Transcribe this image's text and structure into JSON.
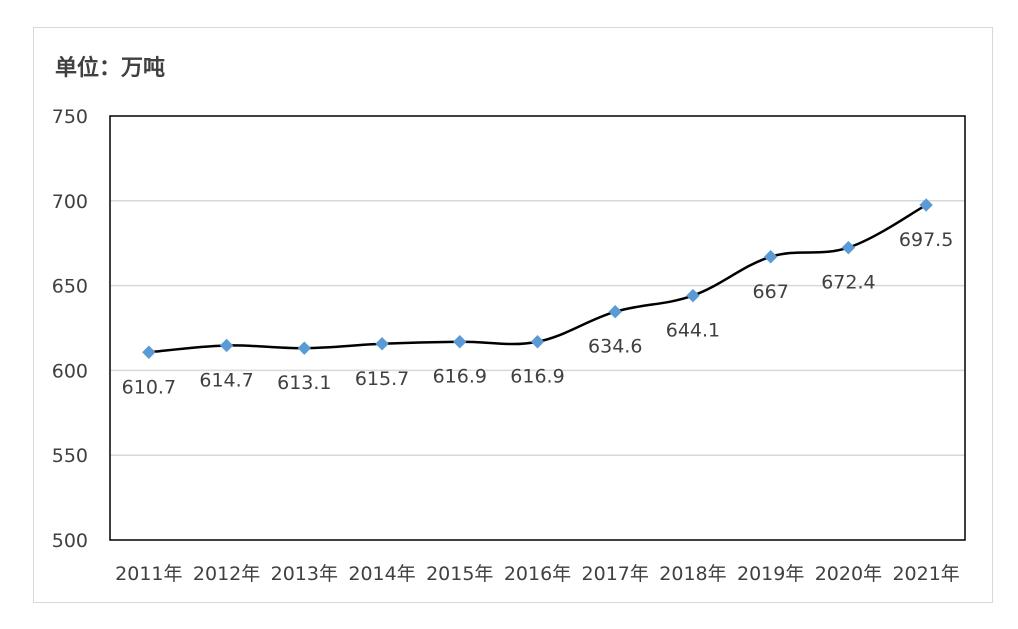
{
  "unit_label": "单位：万吨",
  "chart_data": {
    "type": "line",
    "categories": [
      "2011年",
      "2012年",
      "2013年",
      "2014年",
      "2015年",
      "2016年",
      "2017年",
      "2018年",
      "2019年",
      "2020年",
      "2021年"
    ],
    "series": [
      {
        "values": [
          610.7,
          614.7,
          613.1,
          615.7,
          616.9,
          616.9,
          634.6,
          644.1,
          667,
          672.4,
          697.5
        ]
      }
    ],
    "data_labels": [
      "610.7",
      "614.7",
      "613.1",
      "615.7",
      "616.9",
      "616.9",
      "634.6",
      "644.1",
      "667",
      "672.4",
      "697.5"
    ],
    "ylim": [
      500,
      750
    ],
    "yticks": [
      500,
      550,
      600,
      650,
      700,
      750
    ],
    "grid": true,
    "line_color": "#000000",
    "marker_color": "#5b9bd5",
    "grid_color": "#d9d9d9"
  }
}
